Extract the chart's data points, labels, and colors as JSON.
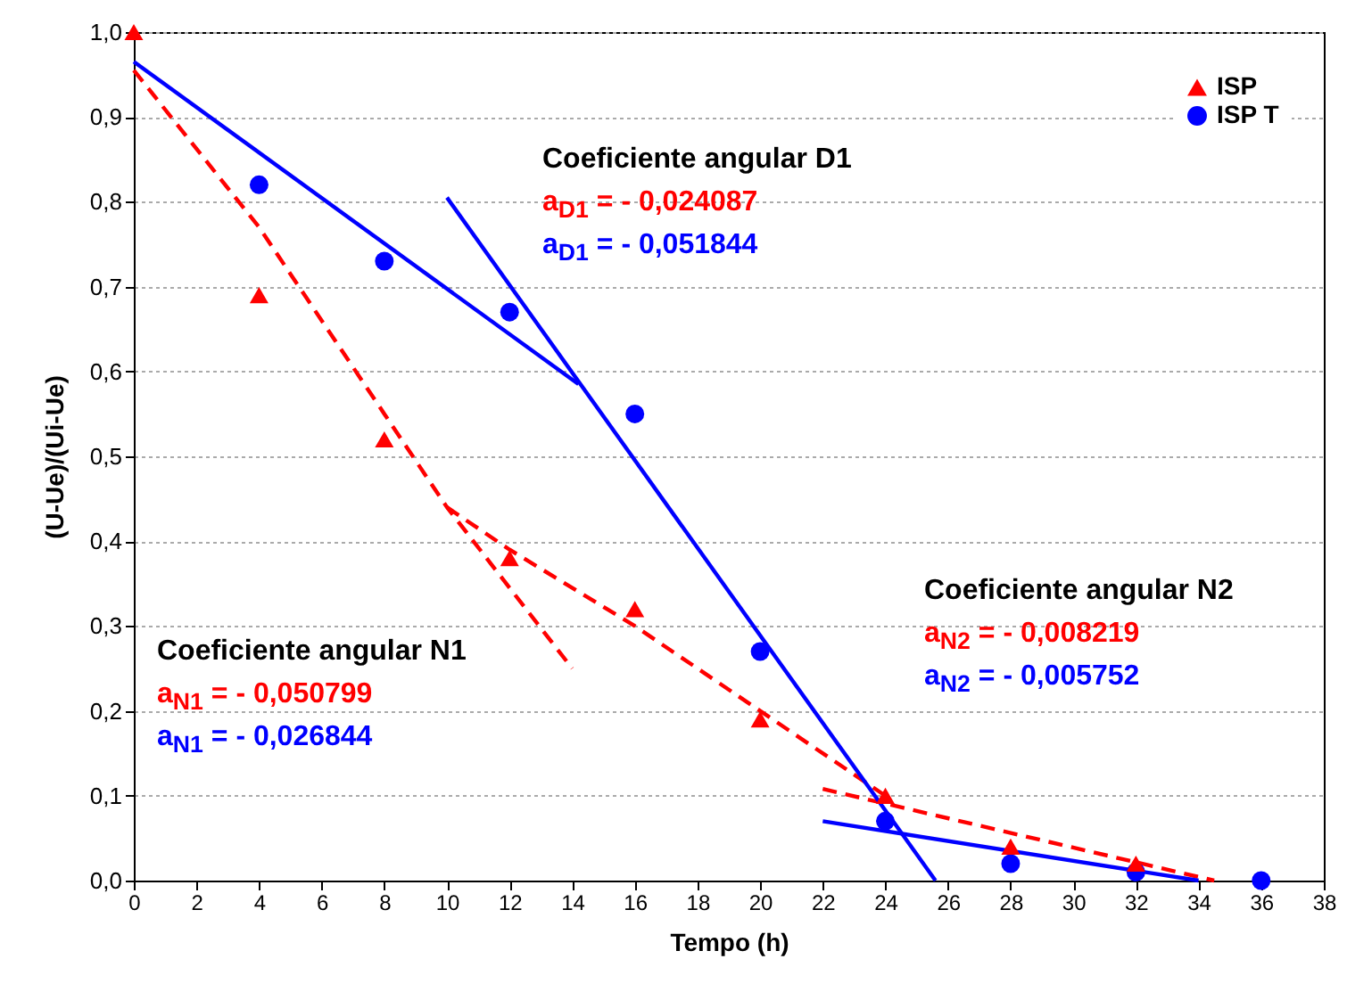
{
  "chart_data": {
    "type": "scatter",
    "xlabel": "Tempo (h)",
    "ylabel": "(U-Ue)/(Ui-Ue)",
    "xlim": [
      0,
      38
    ],
    "xticks": [
      0,
      2,
      4,
      6,
      8,
      10,
      12,
      14,
      16,
      18,
      20,
      22,
      24,
      26,
      28,
      30,
      32,
      34,
      36,
      38
    ],
    "ylim": [
      0,
      1
    ],
    "yticks": [
      {
        "value": 0,
        "label": "0,0"
      },
      {
        "value": 0.1,
        "label": "0,1"
      },
      {
        "value": 0.2,
        "label": "0,2"
      },
      {
        "value": 0.3,
        "label": "0,3"
      },
      {
        "value": 0.4,
        "label": "0,4"
      },
      {
        "value": 0.5,
        "label": "0,5"
      },
      {
        "value": 0.6,
        "label": "0,6"
      },
      {
        "value": 0.7,
        "label": "0,7"
      },
      {
        "value": 0.8,
        "label": "0,8"
      },
      {
        "value": 0.9,
        "label": "0,9"
      },
      {
        "value": 1,
        "label": "1,0"
      }
    ],
    "grid": "y",
    "legend": "top right",
    "series": [
      {
        "name": "ISP",
        "color": "#ff0000",
        "marker": "triangle",
        "x": [
          0,
          4,
          8,
          12,
          16,
          20,
          24,
          28,
          32
        ],
        "values": [
          1.0,
          0.69,
          0.52,
          0.38,
          0.32,
          0.19,
          0.1,
          0.04,
          0.02
        ]
      },
      {
        "name": "ISP T",
        "color": "#0000ff",
        "marker": "circle",
        "x": [
          4,
          8,
          12,
          16,
          20,
          24,
          28,
          32,
          36
        ],
        "values": [
          0.82,
          0.73,
          0.67,
          0.55,
          0.27,
          0.07,
          0.02,
          0.01,
          0.0
        ]
      },
      {
        "type": "line",
        "color": "#ff0000",
        "line_style": "dashed",
        "x": [
          0,
          4,
          8,
          10,
          14
        ],
        "values": [
          0.955,
          0.77,
          0.55,
          0.44,
          0.25
        ]
      },
      {
        "type": "line",
        "color": "#ff0000",
        "line_style": "dashed",
        "x": [
          10,
          12,
          16,
          20,
          24
        ],
        "values": [
          0.44,
          0.39,
          0.3,
          0.2,
          0.1
        ]
      },
      {
        "type": "line",
        "color": "#ff0000",
        "line_style": "dashed",
        "x": [
          22,
          34.5
        ],
        "values": [
          0.108,
          0.0
        ]
      },
      {
        "type": "line",
        "color": "#0000ff",
        "line_style": "solid",
        "x": [
          0,
          14.2
        ],
        "values": [
          0.965,
          0.585
        ]
      },
      {
        "type": "line",
        "color": "#0000ff",
        "line_style": "solid",
        "x": [
          10,
          25.6
        ],
        "values": [
          0.805,
          0.0
        ]
      },
      {
        "type": "line",
        "color": "#0000ff",
        "line_style": "solid",
        "x": [
          22,
          34
        ],
        "values": [
          0.07,
          0.0
        ]
      }
    ],
    "annotations": [
      "Coeficiente angular D1",
      "a$_{D1}$ = - 0,024087",
      "a$_{D1}$ = - 0,051844",
      "Coeficiente angular N1",
      "a$_{N1}$ = - 0,050799",
      "a$_{N1}$ = - 0,026844",
      "Coeficiente angular N2",
      "a$_{N2}$ = - 0,008219",
      "a$_{N2}$ = - 0,005752"
    ]
  }
}
